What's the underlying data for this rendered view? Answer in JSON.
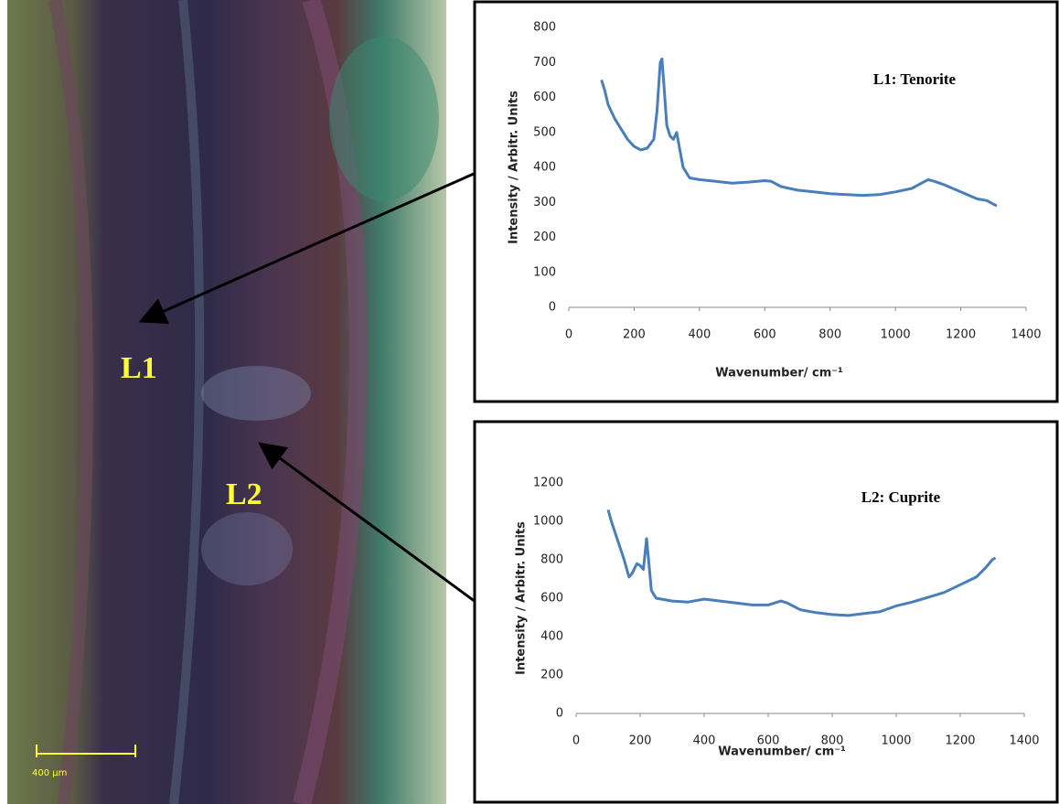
{
  "image": {
    "labels": [
      "L1",
      "L2"
    ],
    "scale_bar": "400 µm"
  },
  "chart_data": [
    {
      "type": "line",
      "annotation": "L1: Tenorite",
      "xlabel": "Wavenumber/ cm⁻¹",
      "ylabel": "Intensity / Arbitr. Units",
      "xlim": [
        0,
        1400
      ],
      "xticks": [
        0,
        200,
        400,
        600,
        800,
        1000,
        1200,
        1400
      ],
      "ylim": [
        0,
        800
      ],
      "yticks": [
        0,
        100,
        200,
        300,
        400,
        500,
        600,
        700,
        800
      ],
      "series": [
        {
          "name": "L1",
          "color": "#4a7ebb",
          "x": [
            100,
            110,
            120,
            140,
            160,
            180,
            200,
            220,
            240,
            260,
            270,
            280,
            285,
            290,
            300,
            310,
            320,
            330,
            340,
            350,
            370,
            400,
            450,
            500,
            550,
            600,
            620,
            650,
            700,
            750,
            800,
            850,
            900,
            950,
            1000,
            1050,
            1080,
            1100,
            1120,
            1150,
            1200,
            1250,
            1280,
            1300,
            1310
          ],
          "values": [
            650,
            620,
            580,
            540,
            510,
            480,
            460,
            450,
            455,
            480,
            560,
            700,
            710,
            650,
            520,
            490,
            480,
            500,
            450,
            400,
            370,
            365,
            360,
            355,
            358,
            362,
            360,
            345,
            335,
            330,
            325,
            322,
            320,
            322,
            330,
            340,
            355,
            365,
            360,
            350,
            330,
            310,
            305,
            295,
            290
          ]
        }
      ]
    },
    {
      "type": "line",
      "annotation": "L2: Cuprite",
      "xlabel": "Wavenumber/ cm⁻¹",
      "ylabel": "Intensity / Arbitr. Units",
      "xlim": [
        0,
        1400
      ],
      "xticks": [
        0,
        200,
        400,
        600,
        800,
        1000,
        1200,
        1400
      ],
      "ylim": [
        0,
        1200
      ],
      "yticks": [
        0,
        200,
        400,
        600,
        800,
        1000,
        1200
      ],
      "series": [
        {
          "name": "L2",
          "color": "#4a7ebb",
          "x": [
            100,
            110,
            130,
            150,
            165,
            175,
            190,
            200,
            210,
            215,
            220,
            225,
            235,
            250,
            300,
            350,
            400,
            450,
            500,
            550,
            600,
            640,
            660,
            700,
            750,
            800,
            850,
            900,
            950,
            1000,
            1050,
            1100,
            1150,
            1200,
            1250,
            1280,
            1300,
            1310
          ],
          "values": [
            1060,
            1000,
            900,
            800,
            710,
            730,
            780,
            770,
            750,
            830,
            910,
            820,
            640,
            600,
            585,
            580,
            595,
            585,
            575,
            565,
            565,
            585,
            575,
            540,
            525,
            515,
            510,
            520,
            530,
            560,
            580,
            605,
            630,
            670,
            710,
            760,
            800,
            810
          ]
        }
      ]
    }
  ]
}
